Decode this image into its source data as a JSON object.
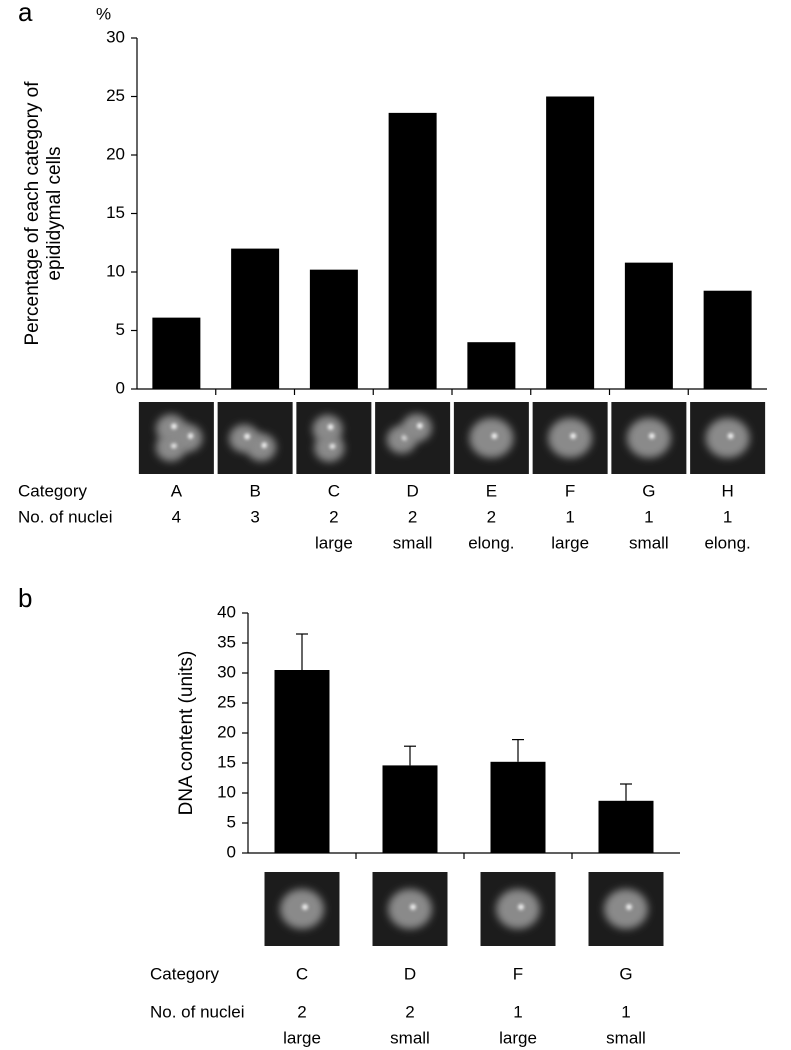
{
  "chart_data": [
    {
      "type": "bar",
      "panel": "a",
      "unit": "%",
      "ylabel": [
        "Percentage of each category of",
        "epididymal cells"
      ],
      "categories": [
        "A",
        "B",
        "C",
        "D",
        "E",
        "F",
        "G",
        "H"
      ],
      "values": [
        6.1,
        12,
        10.2,
        23.6,
        4.0,
        25,
        10.8,
        8.4
      ],
      "color": "#000000",
      "ylim": [
        0,
        30
      ],
      "yticks": [
        0,
        5,
        10,
        15,
        20,
        25,
        30
      ],
      "row_labels": [
        "Category",
        "No. of nuclei"
      ],
      "nuclei": [
        4,
        3,
        2,
        2,
        2,
        1,
        1,
        1
      ],
      "nuclei_type": [
        null,
        null,
        "large",
        "small",
        "elong.",
        "large",
        "small",
        "elong."
      ]
    },
    {
      "type": "bar",
      "panel": "b",
      "ylabel": [
        "DNA content (units)"
      ],
      "categories": [
        "C",
        "D",
        "F",
        "G"
      ],
      "values": [
        30.5,
        14.6,
        15.2,
        8.7
      ],
      "errors": [
        6.0,
        3.2,
        3.7,
        2.8
      ],
      "color": "#000000",
      "ylim": [
        0,
        40
      ],
      "yticks": [
        0,
        5,
        10,
        15,
        20,
        25,
        30,
        35,
        40
      ],
      "row_labels": [
        "Category",
        "No. of nuclei"
      ],
      "nuclei": [
        2,
        2,
        1,
        1
      ],
      "nuclei_type": [
        "large",
        "small",
        "large",
        "small"
      ]
    }
  ]
}
